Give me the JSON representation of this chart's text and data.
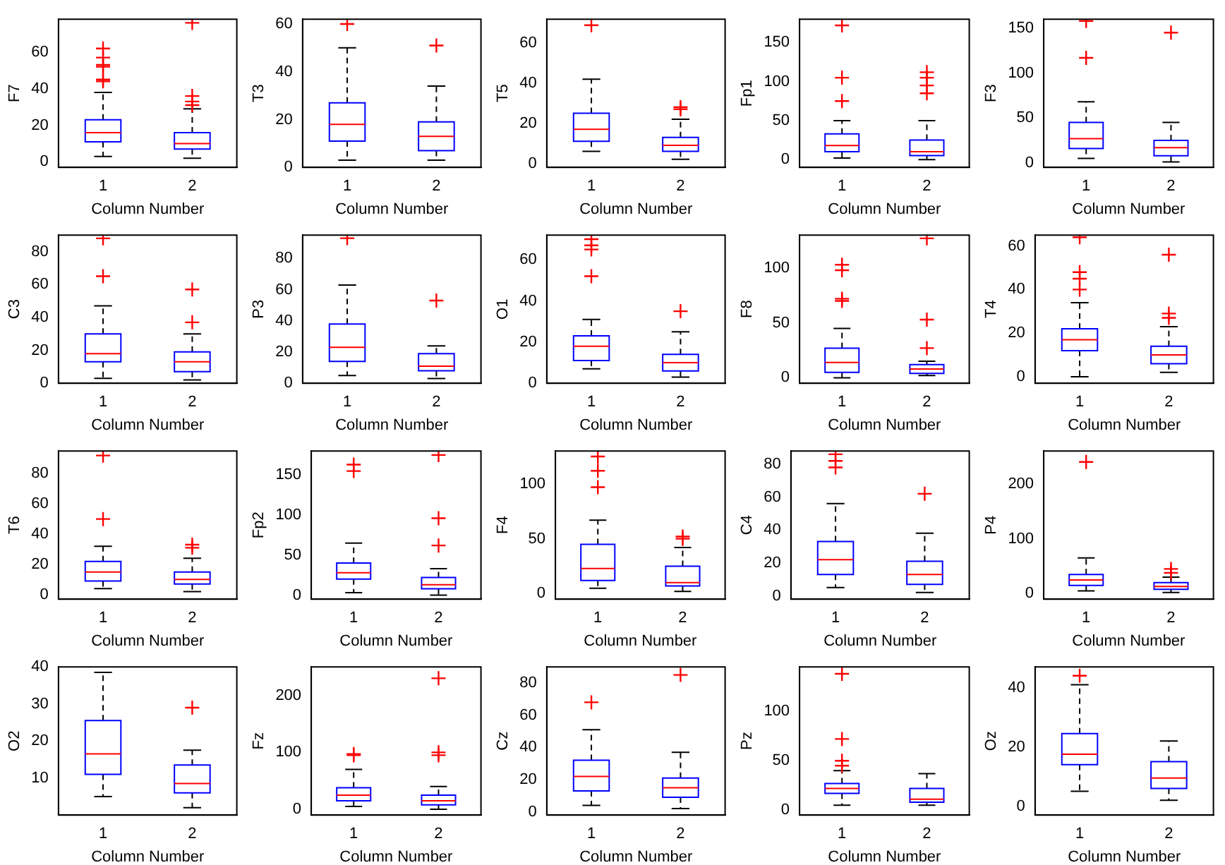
{
  "chart_data": [
    {
      "type": "box",
      "ylabel": "F7",
      "xlabel": "Column Number",
      "categories": [
        "1",
        "2"
      ],
      "color": "#0000ff",
      "ylim": [
        -3,
        78
      ],
      "yticks": [
        0,
        20,
        40,
        60
      ],
      "grid": false,
      "legend": false,
      "boxes": [
        {
          "low": 3,
          "q1": 11,
          "median": 16,
          "q3": 23,
          "high": 38,
          "outliers": [
            44,
            45,
            52,
            53,
            57,
            62
          ]
        },
        {
          "low": 2,
          "q1": 7,
          "median": 10,
          "q3": 16,
          "high": 29,
          "outliers": [
            31,
            33,
            36,
            76
          ]
        }
      ]
    },
    {
      "type": "box",
      "ylabel": "T3",
      "xlabel": "Column Number",
      "categories": [
        "1",
        "2"
      ],
      "color": "#0000ff",
      "ylim": [
        0,
        62
      ],
      "yticks": [
        0,
        20,
        40,
        60
      ],
      "grid": false,
      "legend": false,
      "boxes": [
        {
          "low": 3,
          "q1": 11,
          "median": 18,
          "q3": 27,
          "high": 50,
          "outliers": [
            60
          ]
        },
        {
          "low": 3,
          "q1": 7,
          "median": 13,
          "q3": 19,
          "high": 34,
          "outliers": [
            51
          ]
        }
      ]
    },
    {
      "type": "box",
      "ylabel": "T5",
      "xlabel": "Column Number",
      "categories": [
        "1",
        "2"
      ],
      "color": "#0000ff",
      "ylim": [
        -2,
        72
      ],
      "yticks": [
        0,
        20,
        40,
        60
      ],
      "grid": false,
      "legend": false,
      "boxes": [
        {
          "low": 6,
          "q1": 11,
          "median": 17,
          "q3": 25,
          "high": 42,
          "outliers": [
            69
          ]
        },
        {
          "low": 2,
          "q1": 6,
          "median": 9,
          "q3": 13,
          "high": 22,
          "outliers": [
            27,
            28
          ]
        }
      ]
    },
    {
      "type": "box",
      "ylabel": "Fp1",
      "xlabel": "Column Number",
      "categories": [
        "1",
        "2"
      ],
      "color": "#0000ff",
      "ylim": [
        -10,
        180
      ],
      "yticks": [
        0,
        50,
        100,
        150
      ],
      "grid": false,
      "legend": false,
      "boxes": [
        {
          "low": 2,
          "q1": 10,
          "median": 18,
          "q3": 33,
          "high": 50,
          "outliers": [
            75,
            105,
            172
          ]
        },
        {
          "low": 0,
          "q1": 5,
          "median": 10,
          "q3": 25,
          "high": 50,
          "outliers": [
            85,
            95,
            105,
            112
          ]
        }
      ]
    },
    {
      "type": "box",
      "ylabel": "F3",
      "xlabel": "Column Number",
      "categories": [
        "1",
        "2"
      ],
      "color": "#0000ff",
      "ylim": [
        -5,
        160
      ],
      "yticks": [
        0,
        50,
        100,
        150
      ],
      "grid": false,
      "legend": false,
      "boxes": [
        {
          "low": 5,
          "q1": 16,
          "median": 27,
          "q3": 45,
          "high": 68,
          "outliers": [
            117,
            158
          ]
        },
        {
          "low": 1,
          "q1": 8,
          "median": 17,
          "q3": 25,
          "high": 45,
          "outliers": [
            145
          ]
        }
      ]
    },
    {
      "type": "box",
      "ylabel": "C3",
      "xlabel": "Column Number",
      "categories": [
        "1",
        "2"
      ],
      "color": "#0000ff",
      "ylim": [
        0,
        90
      ],
      "yticks": [
        0,
        20,
        40,
        60,
        80
      ],
      "grid": false,
      "legend": false,
      "boxes": [
        {
          "low": 3,
          "q1": 13,
          "median": 18,
          "q3": 30,
          "high": 47,
          "outliers": [
            65,
            88
          ]
        },
        {
          "low": 2,
          "q1": 7,
          "median": 13,
          "q3": 19,
          "high": 30,
          "outliers": [
            37,
            57
          ]
        }
      ]
    },
    {
      "type": "box",
      "ylabel": "P3",
      "xlabel": "Column Number",
      "categories": [
        "1",
        "2"
      ],
      "color": "#0000ff",
      "ylim": [
        0,
        95
      ],
      "yticks": [
        0,
        20,
        40,
        60,
        80
      ],
      "grid": false,
      "legend": false,
      "boxes": [
        {
          "low": 5,
          "q1": 14,
          "median": 23,
          "q3": 38,
          "high": 63,
          "outliers": [
            93
          ]
        },
        {
          "low": 3,
          "q1": 8,
          "median": 11,
          "q3": 19,
          "high": 24,
          "outliers": [
            53
          ]
        }
      ]
    },
    {
      "type": "box",
      "ylabel": "O1",
      "xlabel": "Column Number",
      "categories": [
        "1",
        "2"
      ],
      "color": "#0000ff",
      "ylim": [
        0,
        72
      ],
      "yticks": [
        0,
        20,
        40,
        60
      ],
      "grid": false,
      "legend": false,
      "boxes": [
        {
          "low": 7,
          "q1": 11,
          "median": 18,
          "q3": 23,
          "high": 31,
          "outliers": [
            52,
            65,
            67,
            70
          ]
        },
        {
          "low": 3,
          "q1": 6,
          "median": 10,
          "q3": 14,
          "high": 25,
          "outliers": [
            35
          ]
        }
      ]
    },
    {
      "type": "box",
      "ylabel": "F8",
      "xlabel": "Column Number",
      "categories": [
        "1",
        "2"
      ],
      "color": "#0000ff",
      "ylim": [
        -5,
        130
      ],
      "yticks": [
        0,
        50,
        100
      ],
      "grid": false,
      "legend": false,
      "boxes": [
        {
          "low": 0,
          "q1": 5,
          "median": 14,
          "q3": 27,
          "high": 45,
          "outliers": [
            70,
            72,
            98,
            103
          ]
        },
        {
          "low": 2,
          "q1": 4,
          "median": 8,
          "q3": 12,
          "high": 15,
          "outliers": [
            27,
            53,
            127
          ]
        }
      ]
    },
    {
      "type": "box",
      "ylabel": "T4",
      "xlabel": "Column Number",
      "categories": [
        "1",
        "2"
      ],
      "color": "#0000ff",
      "ylim": [
        -3,
        65
      ],
      "yticks": [
        0,
        20,
        40,
        60
      ],
      "grid": false,
      "legend": false,
      "boxes": [
        {
          "low": 0,
          "q1": 12,
          "median": 17,
          "q3": 22,
          "high": 34,
          "outliers": [
            40,
            45,
            48,
            64
          ]
        },
        {
          "low": 2,
          "q1": 6,
          "median": 10,
          "q3": 14,
          "high": 23,
          "outliers": [
            27,
            29,
            56
          ]
        }
      ]
    },
    {
      "type": "box",
      "ylabel": "T6",
      "xlabel": "Column Number",
      "categories": [
        "1",
        "2"
      ],
      "color": "#0000ff",
      "ylim": [
        -3,
        95
      ],
      "yticks": [
        0,
        20,
        40,
        60,
        80
      ],
      "grid": false,
      "legend": false,
      "boxes": [
        {
          "low": 4,
          "q1": 9,
          "median": 15,
          "q3": 22,
          "high": 32,
          "outliers": [
            50,
            92
          ]
        },
        {
          "low": 2,
          "q1": 7,
          "median": 10,
          "q3": 15,
          "high": 24,
          "outliers": [
            31,
            33
          ]
        }
      ]
    },
    {
      "type": "box",
      "ylabel": "Fp2",
      "xlabel": "Column Number",
      "categories": [
        "1",
        "2"
      ],
      "color": "#0000ff",
      "ylim": [
        -5,
        180
      ],
      "yticks": [
        0,
        50,
        100,
        150
      ],
      "grid": false,
      "legend": false,
      "boxes": [
        {
          "low": 3,
          "q1": 20,
          "median": 28,
          "q3": 40,
          "high": 65,
          "outliers": [
            155,
            163
          ]
        },
        {
          "low": 0,
          "q1": 8,
          "median": 13,
          "q3": 22,
          "high": 33,
          "outliers": [
            62,
            96,
            175
          ]
        }
      ]
    },
    {
      "type": "box",
      "ylabel": "F4",
      "xlabel": "Column Number",
      "categories": [
        "1",
        "2"
      ],
      "color": "#0000ff",
      "ylim": [
        -5,
        130
      ],
      "yticks": [
        0,
        50,
        100
      ],
      "grid": false,
      "legend": false,
      "boxes": [
        {
          "low": 5,
          "q1": 12,
          "median": 23,
          "q3": 45,
          "high": 67,
          "outliers": [
            97,
            112,
            125
          ]
        },
        {
          "low": 2,
          "q1": 7,
          "median": 10,
          "q3": 25,
          "high": 42,
          "outliers": [
            50,
            52
          ]
        }
      ]
    },
    {
      "type": "box",
      "ylabel": "C4",
      "xlabel": "Column Number",
      "categories": [
        "1",
        "2"
      ],
      "color": "#0000ff",
      "ylim": [
        -2,
        88
      ],
      "yticks": [
        0,
        20,
        40,
        60,
        80
      ],
      "grid": false,
      "legend": false,
      "boxes": [
        {
          "low": 5,
          "q1": 13,
          "median": 22,
          "q3": 33,
          "high": 56,
          "outliers": [
            78,
            82,
            86
          ]
        },
        {
          "low": 2,
          "q1": 7,
          "median": 13,
          "q3": 21,
          "high": 38,
          "outliers": [
            62
          ]
        }
      ]
    },
    {
      "type": "box",
      "ylabel": "P4",
      "xlabel": "Column Number",
      "categories": [
        "1",
        "2"
      ],
      "color": "#0000ff",
      "ylim": [
        -10,
        260
      ],
      "yticks": [
        0,
        100,
        200
      ],
      "grid": false,
      "legend": false,
      "boxes": [
        {
          "low": 5,
          "q1": 15,
          "median": 25,
          "q3": 35,
          "high": 65,
          "outliers": [
            240
          ]
        },
        {
          "low": 2,
          "q1": 8,
          "median": 13,
          "q3": 20,
          "high": 30,
          "outliers": [
            38,
            45
          ]
        }
      ]
    },
    {
      "type": "box",
      "ylabel": "O2",
      "xlabel": "Column Number",
      "categories": [
        "1",
        "2"
      ],
      "color": "#0000ff",
      "ylim": [
        0,
        40
      ],
      "yticks": [
        10,
        20,
        30,
        40
      ],
      "grid": false,
      "legend": false,
      "boxes": [
        {
          "low": 5,
          "q1": 11,
          "median": 16.5,
          "q3": 25.5,
          "high": 38.5
        },
        {
          "low": 2,
          "q1": 6,
          "median": 8.5,
          "q3": 13.5,
          "high": 17.5,
          "outliers": [
            29
          ]
        }
      ]
    },
    {
      "type": "box",
      "ylabel": "Fz",
      "xlabel": "Column Number",
      "categories": [
        "1",
        "2"
      ],
      "color": "#0000ff",
      "ylim": [
        -10,
        250
      ],
      "yticks": [
        0,
        100,
        200
      ],
      "grid": false,
      "legend": false,
      "boxes": [
        {
          "low": 5,
          "q1": 15,
          "median": 25,
          "q3": 38,
          "high": 70,
          "outliers": [
            95,
            97
          ]
        },
        {
          "low": 0,
          "q1": 8,
          "median": 15,
          "q3": 25,
          "high": 40,
          "outliers": [
            95,
            100,
            230
          ]
        }
      ]
    },
    {
      "type": "box",
      "ylabel": "Cz",
      "xlabel": "Column Number",
      "categories": [
        "1",
        "2"
      ],
      "color": "#0000ff",
      "ylim": [
        -2,
        90
      ],
      "yticks": [
        0,
        20,
        40,
        60,
        80
      ],
      "grid": false,
      "legend": false,
      "boxes": [
        {
          "low": 4,
          "q1": 13,
          "median": 22,
          "q3": 32,
          "high": 51,
          "outliers": [
            68
          ]
        },
        {
          "low": 2,
          "q1": 9,
          "median": 15,
          "q3": 21,
          "high": 37,
          "outliers": [
            85
          ]
        }
      ]
    },
    {
      "type": "box",
      "ylabel": "Pz",
      "xlabel": "Column Number",
      "categories": [
        "1",
        "2"
      ],
      "color": "#0000ff",
      "ylim": [
        -5,
        145
      ],
      "yticks": [
        0,
        50,
        100
      ],
      "grid": false,
      "legend": false,
      "boxes": [
        {
          "low": 5,
          "q1": 17,
          "median": 22,
          "q3": 27,
          "high": 40,
          "outliers": [
            45,
            50,
            72,
            138
          ]
        },
        {
          "low": 5,
          "q1": 8,
          "median": 11,
          "q3": 22,
          "high": 37
        }
      ]
    },
    {
      "type": "box",
      "ylabel": "Oz",
      "xlabel": "Column Number",
      "categories": [
        "1",
        "2"
      ],
      "color": "#0000ff",
      "ylim": [
        -3,
        47
      ],
      "yticks": [
        0,
        20,
        40
      ],
      "grid": false,
      "legend": false,
      "boxes": [
        {
          "low": 5,
          "q1": 14,
          "median": 17.5,
          "q3": 24.5,
          "high": 41,
          "outliers": [
            44
          ]
        },
        {
          "low": 2,
          "q1": 6,
          "median": 9.5,
          "q3": 15,
          "high": 22
        }
      ]
    }
  ]
}
